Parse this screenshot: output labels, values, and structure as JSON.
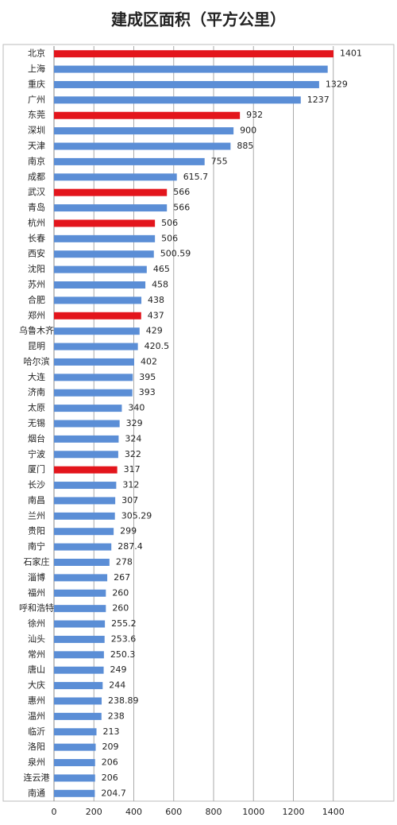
{
  "chart_data": {
    "type": "barh",
    "title": "建成区面积（平方公里）",
    "categories": [
      "北京",
      "上海",
      "重庆",
      "广州",
      "东莞",
      "深圳",
      "天津",
      "南京",
      "成都",
      "武汉",
      "青岛",
      "杭州",
      "长春",
      "西安",
      "沈阳",
      "苏州",
      "合肥",
      "郑州",
      "乌鲁木齐",
      "昆明",
      "哈尔滨",
      "大连",
      "济南",
      "太原",
      "无锡",
      "烟台",
      "宁波",
      "厦门",
      "长沙",
      "南昌",
      "兰州",
      "贵阳",
      "南宁",
      "石家庄",
      "淄博",
      "福州",
      "呼和浩特",
      "徐州",
      "汕头",
      "常州",
      "唐山",
      "大庆",
      "惠州",
      "温州",
      "临沂",
      "洛阳",
      "泉州",
      "连云港",
      "南通"
    ],
    "values": [
      1401,
      1372,
      1329,
      1237,
      932,
      900,
      885,
      755,
      615.7,
      566,
      566,
      506,
      506,
      500.59,
      465,
      458,
      438,
      437,
      429,
      420.5,
      402,
      395,
      393,
      340,
      329,
      324,
      322,
      317,
      312,
      307,
      305.29,
      299,
      287.4,
      278,
      267,
      260,
      260,
      255.2,
      253.6,
      250.3,
      249,
      244,
      238.89,
      238,
      213,
      209,
      206,
      206,
      204.7
    ],
    "value_labels": [
      "1401",
      null,
      "1329",
      "1237",
      "932",
      "900",
      "885",
      "755",
      "615.7",
      "566",
      "566",
      "506",
      "506",
      "500.59",
      "465",
      "458",
      "438",
      "437",
      "429",
      "420.5",
      "402",
      "395",
      "393",
      "340",
      "329",
      "324",
      "322",
      "317",
      "312",
      "307",
      "305.29",
      "299",
      "287.4",
      "278",
      "267",
      "260",
      "260",
      "255.2",
      "253.6",
      "250.3",
      "249",
      "244",
      "238.89",
      "238",
      "213",
      "209",
      "206",
      "206",
      "204.7"
    ],
    "colors": [
      "#e3151c",
      "#5b8ed6",
      "#5b8ed6",
      "#5b8ed6",
      "#e3151c",
      "#5b8ed6",
      "#5b8ed6",
      "#5b8ed6",
      "#5b8ed6",
      "#e3151c",
      "#5b8ed6",
      "#e3151c",
      "#5b8ed6",
      "#5b8ed6",
      "#5b8ed6",
      "#5b8ed6",
      "#5b8ed6",
      "#e3151c",
      "#5b8ed6",
      "#5b8ed6",
      "#5b8ed6",
      "#5b8ed6",
      "#5b8ed6",
      "#5b8ed6",
      "#5b8ed6",
      "#5b8ed6",
      "#5b8ed6",
      "#e3151c",
      "#5b8ed6",
      "#5b8ed6",
      "#5b8ed6",
      "#5b8ed6",
      "#5b8ed6",
      "#5b8ed6",
      "#5b8ed6",
      "#5b8ed6",
      "#5b8ed6",
      "#5b8ed6",
      "#5b8ed6",
      "#5b8ed6",
      "#5b8ed6",
      "#5b8ed6",
      "#5b8ed6",
      "#5b8ed6",
      "#5b8ed6",
      "#5b8ed6",
      "#5b8ed6",
      "#5b8ed6",
      "#5b8ed6"
    ],
    "xlim": [
      0,
      1600
    ],
    "xticks": [
      0,
      200,
      400,
      600,
      800,
      1000,
      1200,
      1400
    ],
    "grid": true
  }
}
